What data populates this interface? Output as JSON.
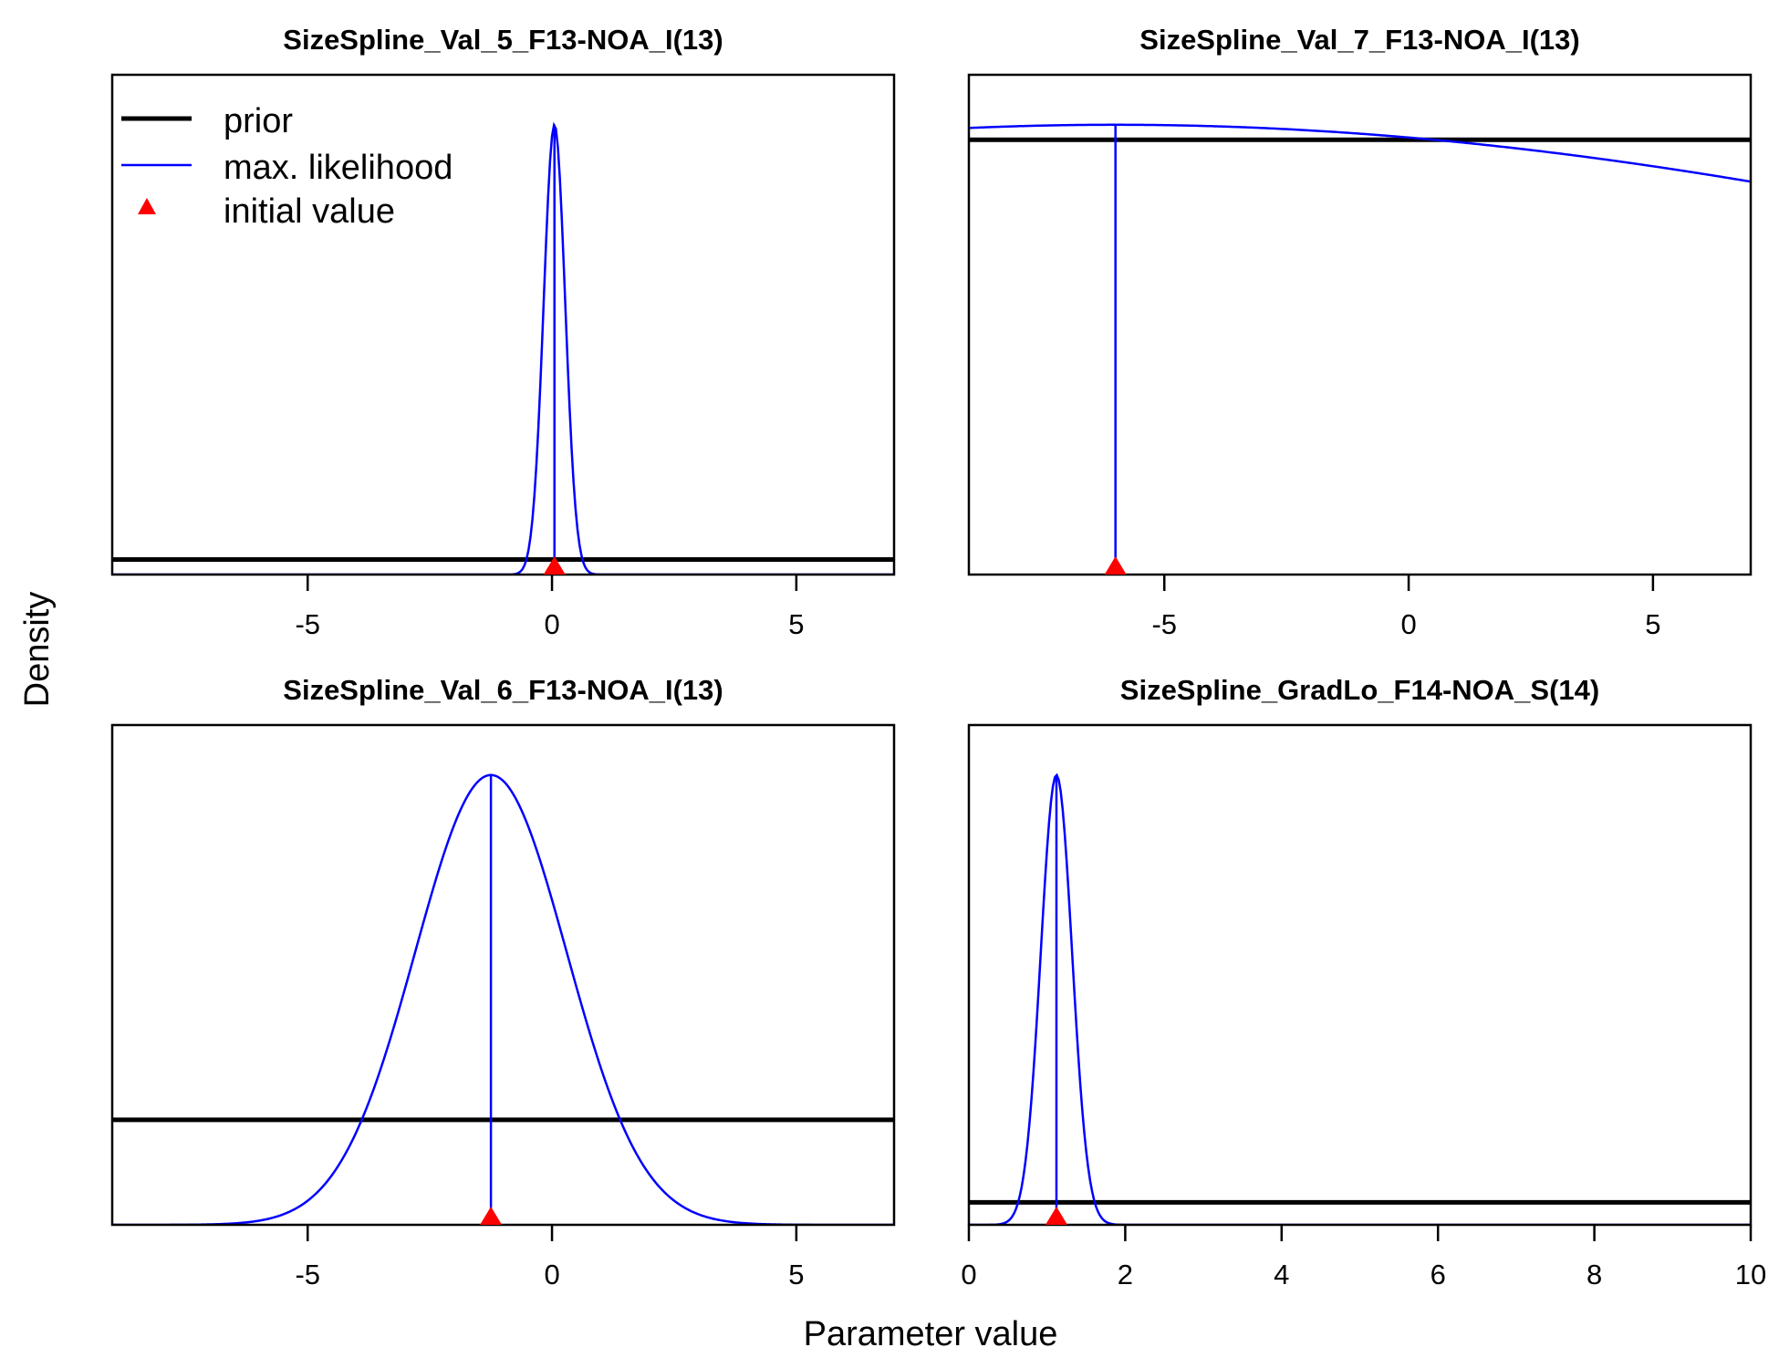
{
  "colors": {
    "prior": "#000000",
    "likelihood": "#0000ff",
    "initial": "#ff0000",
    "frame": "#000000"
  },
  "legend": {
    "placement": "top-left (first panel)",
    "entries": [
      {
        "label": "prior",
        "kind": "line",
        "color": "#000000"
      },
      {
        "label": "max. likelihood",
        "kind": "line",
        "color": "#0000ff"
      },
      {
        "label": "initial value",
        "kind": "triangle",
        "color": "#ff0000"
      }
    ]
  },
  "axes": {
    "xlabel": "Parameter value",
    "ylabel": "Density"
  },
  "chart_data": [
    {
      "type": "line",
      "title": "SizeSpline_Val_5_F13-NOA_I(13)",
      "xlim": [
        -9,
        7
      ],
      "ylim": [
        0,
        1
      ],
      "xticks": [
        -5,
        0,
        5
      ],
      "grid": false,
      "prior": {
        "kind": "flat",
        "level": 0.03
      },
      "likelihood": {
        "kind": "gaussian",
        "mean": 0.05,
        "sd": 0.22,
        "peak": 0.9
      },
      "mle": 0.05,
      "initial": 0.05
    },
    {
      "type": "line",
      "title": "SizeSpline_Val_7_F13-NOA_I(13)",
      "xlim": [
        -9,
        7
      ],
      "ylim": [
        0,
        1
      ],
      "xticks": [
        -5,
        0,
        5
      ],
      "grid": false,
      "prior": {
        "kind": "flat",
        "level": 0.87
      },
      "likelihood": {
        "kind": "gaussian",
        "mean": -6,
        "sd": 25,
        "peak": 0.9
      },
      "mle": -6,
      "initial": -6
    },
    {
      "type": "line",
      "title": "SizeSpline_Val_6_F13-NOA_I(13)",
      "xlim": [
        -9,
        7
      ],
      "ylim": [
        0,
        1
      ],
      "xticks": [
        -5,
        0,
        5
      ],
      "grid": false,
      "prior": {
        "kind": "flat",
        "level": 0.21
      },
      "likelihood": {
        "kind": "gaussian",
        "mean": -1.25,
        "sd": 1.55,
        "peak": 0.9
      },
      "mle": -1.25,
      "initial": -1.25
    },
    {
      "type": "line",
      "title": "SizeSpline_GradLo_F14-NOA_S(14)",
      "xlim": [
        0,
        10
      ],
      "ylim": [
        0,
        1
      ],
      "xticks": [
        0,
        2,
        4,
        6,
        8,
        10
      ],
      "grid": false,
      "prior": {
        "kind": "flat",
        "level": 0.045
      },
      "likelihood": {
        "kind": "gaussian",
        "mean": 1.12,
        "sd": 0.2,
        "peak": 0.9
      },
      "mle": 1.12,
      "initial": 1.12
    }
  ]
}
